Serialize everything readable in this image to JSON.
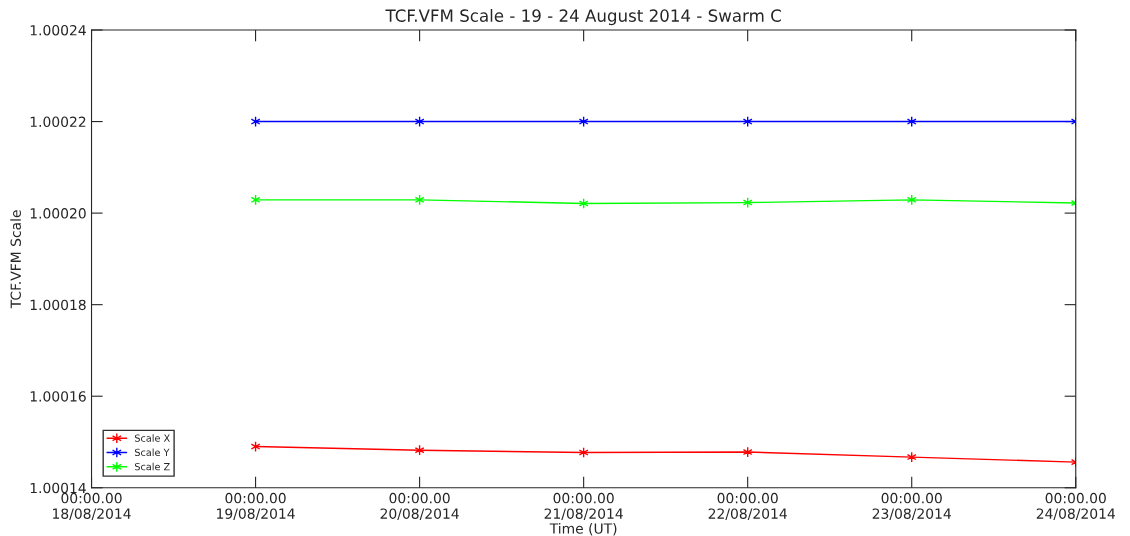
{
  "chart_data": {
    "type": "line",
    "title": "TCF.VFM Scale - 19 - 24 August 2014 - Swarm C",
    "xlabel": "Time (UT)",
    "ylabel": "TCF.VFM Scale",
    "x": [
      "2014-08-19",
      "2014-08-20",
      "2014-08-21",
      "2014-08-22",
      "2014-08-23",
      "2014-08-24"
    ],
    "series": [
      {
        "name": "Scale X",
        "color": "#ff0000",
        "values": [
          1.000149,
          1.0001482,
          1.0001477,
          1.0001478,
          1.0001467,
          1.0001456
        ]
      },
      {
        "name": "Scale Y",
        "color": "#0000ff",
        "values": [
          1.00022,
          1.00022,
          1.00022,
          1.00022,
          1.00022,
          1.00022
        ]
      },
      {
        "name": "Scale Z",
        "color": "#00ff00",
        "values": [
          1.0002029,
          1.0002029,
          1.0002021,
          1.0002023,
          1.0002029,
          1.0002022
        ]
      }
    ],
    "xlim": [
      "2014-08-18",
      "2014-08-24"
    ],
    "xticks": [
      {
        "value": "2014-08-18",
        "label": "00:00.00\n18/08/2014"
      },
      {
        "value": "2014-08-19",
        "label": "00:00.00\n19/08/2014"
      },
      {
        "value": "2014-08-20",
        "label": "00:00.00\n20/08/2014"
      },
      {
        "value": "2014-08-21",
        "label": "00:00.00\n21/08/2014"
      },
      {
        "value": "2014-08-22",
        "label": "00:00.00\n22/08/2014"
      },
      {
        "value": "2014-08-23",
        "label": "00:00.00\n23/08/2014"
      },
      {
        "value": "2014-08-24",
        "label": "00:00.00\n24/08/2014"
      }
    ],
    "ylim": [
      1.00014,
      1.00024
    ],
    "yticks": [
      {
        "value": 1.00014,
        "label": "1.00014"
      },
      {
        "value": 1.00016,
        "label": "1.00016"
      },
      {
        "value": 1.00018,
        "label": "1.00018"
      },
      {
        "value": 1.0002,
        "label": "1.00020"
      },
      {
        "value": 1.00022,
        "label": "1.00022"
      },
      {
        "value": 1.00024,
        "label": "1.00024"
      }
    ],
    "marker": "cross",
    "line_style": "solid",
    "legend": "bottom left",
    "grid": false
  }
}
